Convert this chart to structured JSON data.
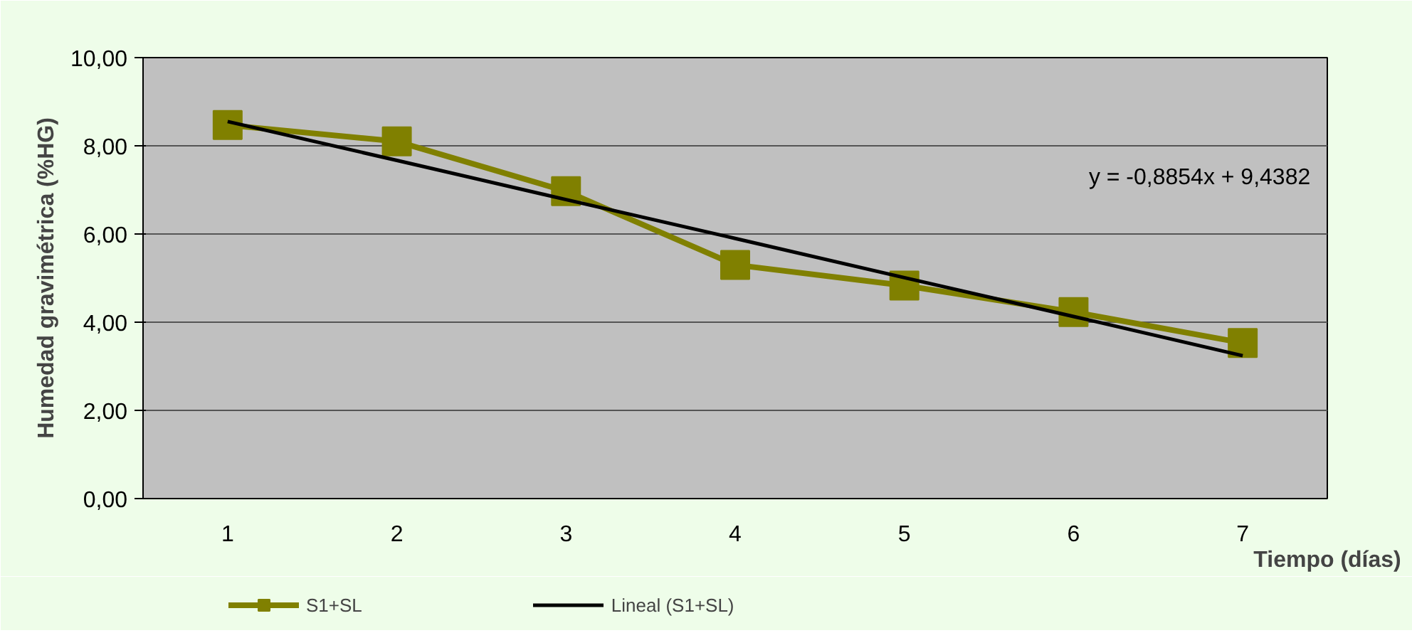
{
  "chart_data": {
    "type": "line",
    "ylabel": "Humedad gravimétrica (%HG)",
    "xlabel": "Tiempo (días)",
    "categories": [
      "1",
      "2",
      "3",
      "4",
      "5",
      "6",
      "7"
    ],
    "series": [
      {
        "name": "S1+SL",
        "color": "#808000",
        "values": [
          8.47,
          8.1,
          6.97,
          5.3,
          4.83,
          4.23,
          3.53
        ],
        "marker": "square"
      },
      {
        "name": "Lineal (S1+SL)",
        "color": "#000000",
        "type": "line",
        "values": [
          8.55,
          7.67,
          6.78,
          5.9,
          5.01,
          4.13,
          3.24
        ],
        "marker": "none"
      }
    ],
    "ylim": [
      0,
      10
    ],
    "yticks": [
      {
        "value": 0,
        "label": "0,00"
      },
      {
        "value": 2,
        "label": "2,00"
      },
      {
        "value": 4,
        "label": "4,00"
      },
      {
        "value": 6,
        "label": "6,00"
      },
      {
        "value": 8,
        "label": "8,00"
      },
      {
        "value": 10,
        "label": "10,00"
      }
    ],
    "grid": "y",
    "legend": "bottom",
    "line_style": "solid",
    "annotations": [
      "y = -0,8854x + 9,4382"
    ]
  }
}
